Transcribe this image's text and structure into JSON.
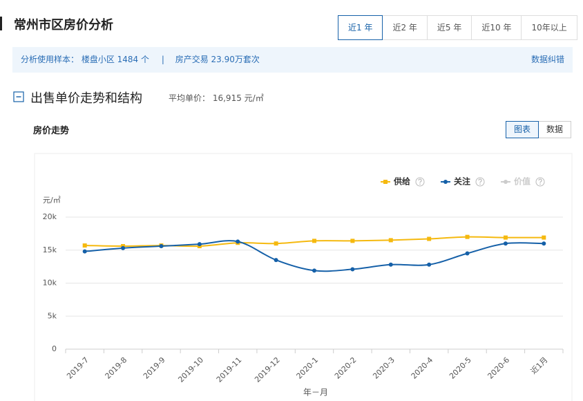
{
  "header": {
    "title": "常州市区房价分析",
    "tabs": [
      "近1 年",
      "近2 年",
      "近5 年",
      "近10 年",
      "10年以上"
    ],
    "active_tab": 0
  },
  "info": {
    "sample": "分析使用样本： 楼盘小区 1484 个",
    "separator": "|",
    "trades": "房产交易 23.90万套次",
    "correction": "数据纠错"
  },
  "section": {
    "title": "出售单价走势和结构",
    "avg_label": "平均单价：",
    "avg_value": "16,915 元/㎡"
  },
  "chart_panel": {
    "title": "房价走势",
    "view_buttons": [
      "图表",
      "数据"
    ],
    "active_view": 0
  },
  "chart_data": {
    "type": "line",
    "y_unit": "元/㎡",
    "x_label": "年－月",
    "smooth": true,
    "grid": true,
    "legend": "top-right",
    "categories": [
      "2019-7",
      "2019-8",
      "2019-9",
      "2019-10",
      "2019-11",
      "2019-12",
      "2020-1",
      "2020-2",
      "2020-3",
      "2020-4",
      "2020-5",
      "2020-6",
      "近1月"
    ],
    "series": [
      {
        "name": "供给",
        "color": "#f5b90f",
        "marker": "square",
        "values": [
          15700,
          15600,
          15700,
          15600,
          16100,
          16000,
          16400,
          16400,
          16500,
          16700,
          17000,
          16900,
          16900
        ]
      },
      {
        "name": "关注",
        "color": "#1560a8",
        "marker": "circle",
        "values": [
          14800,
          15300,
          15600,
          15900,
          16300,
          13500,
          11900,
          12100,
          12800,
          12800,
          14500,
          16000,
          16000
        ]
      },
      {
        "name": "价值",
        "color": "#cccccc",
        "marker": "circle",
        "values": [
          null,
          null,
          null,
          null,
          null,
          null,
          null,
          null,
          null,
          null,
          null,
          null,
          null
        ]
      }
    ],
    "ylim": [
      0,
      20000
    ],
    "yticks": [
      0,
      {
        "value": 5000,
        "label": "5k"
      },
      {
        "value": 10000,
        "label": "10k"
      },
      {
        "value": 15000,
        "label": "15k"
      },
      {
        "value": 20000,
        "label": "20k"
      }
    ]
  }
}
